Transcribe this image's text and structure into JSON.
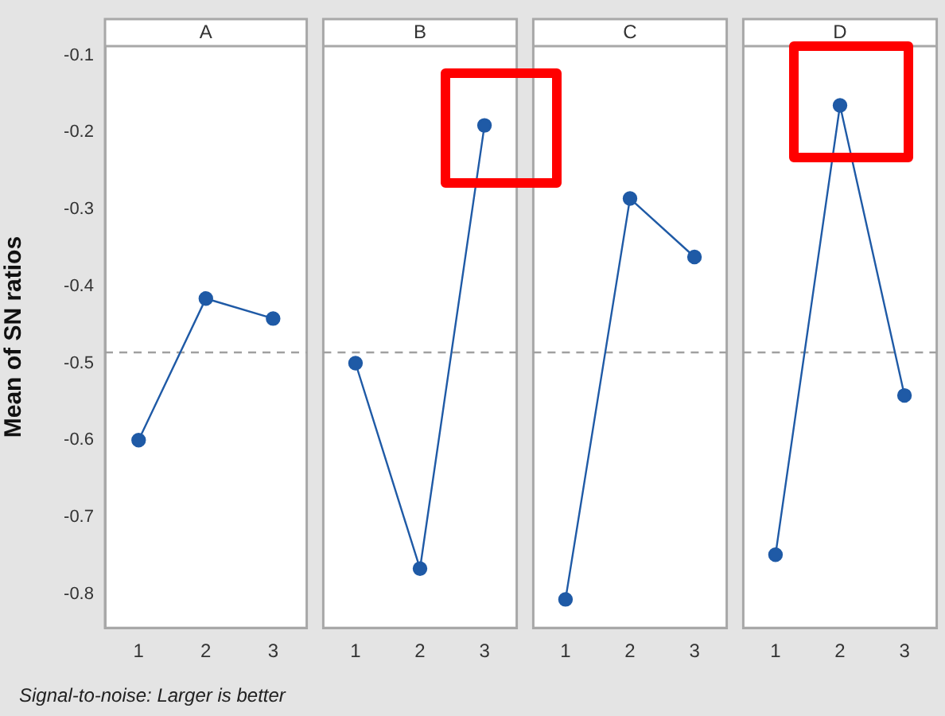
{
  "chart_data": [
    {
      "type": "line",
      "title": "A",
      "ylabel": "Mean of SN ratios",
      "categories": [
        "1",
        "2",
        "3"
      ],
      "series": [
        {
          "color": "#1f5aa6",
          "values": [
            -0.6,
            -0.416,
            -0.442
          ]
        }
      ],
      "ylim": [
        -0.844,
        -0.088
      ],
      "yticks": [
        -0.1,
        -0.2,
        -0.3,
        -0.4,
        -0.5,
        -0.6,
        -0.7,
        -0.8
      ],
      "ref_lines": [
        {
          "axis": "y",
          "value": -0.486,
          "color": "#a0a0a0",
          "line_style": "dashed"
        }
      ],
      "marker": "circle",
      "grid": false,
      "annotations": [
        "Signal-to-noise: Larger is better"
      ]
    },
    {
      "type": "line",
      "title": "B",
      "categories": [
        "1",
        "2",
        "3"
      ],
      "series": [
        {
          "color": "#1f5aa6",
          "values": [
            -0.5,
            -0.767,
            -0.191
          ]
        }
      ],
      "ylim": [
        -0.844,
        -0.088
      ],
      "yticks": [
        -0.1,
        -0.2,
        -0.3,
        -0.4,
        -0.5,
        -0.6,
        -0.7,
        -0.8
      ],
      "ref_lines": [
        {
          "axis": "y",
          "value": -0.486,
          "color": "#a0a0a0",
          "line_style": "dashed"
        }
      ],
      "marker": "circle",
      "grid": false,
      "tick_labels": "x"
    },
    {
      "type": "line",
      "title": "C",
      "categories": [
        "1",
        "2",
        "3"
      ],
      "series": [
        {
          "color": "#1f5aa6",
          "values": [
            -0.807,
            -0.286,
            -0.362
          ]
        }
      ],
      "ylim": [
        -0.844,
        -0.088
      ],
      "yticks": [
        -0.1,
        -0.2,
        -0.3,
        -0.4,
        -0.5,
        -0.6,
        -0.7,
        -0.8
      ],
      "ref_lines": [
        {
          "axis": "y",
          "value": -0.486,
          "color": "#a0a0a0",
          "line_style": "dashed"
        }
      ],
      "marker": "circle",
      "grid": false,
      "tick_labels": "x"
    },
    {
      "type": "line",
      "title": "D",
      "categories": [
        "1",
        "2",
        "3"
      ],
      "series": [
        {
          "color": "#1f5aa6",
          "values": [
            -0.749,
            -0.165,
            -0.542
          ]
        }
      ],
      "ylim": [
        -0.844,
        -0.088
      ],
      "yticks": [
        -0.1,
        -0.2,
        -0.3,
        -0.4,
        -0.5,
        -0.6,
        -0.7,
        -0.8
      ],
      "ref_lines": [
        {
          "axis": "y",
          "value": -0.486,
          "color": "#a0a0a0",
          "line_style": "dashed"
        }
      ],
      "marker": "circle",
      "grid": false,
      "tick_labels": "x"
    }
  ]
}
